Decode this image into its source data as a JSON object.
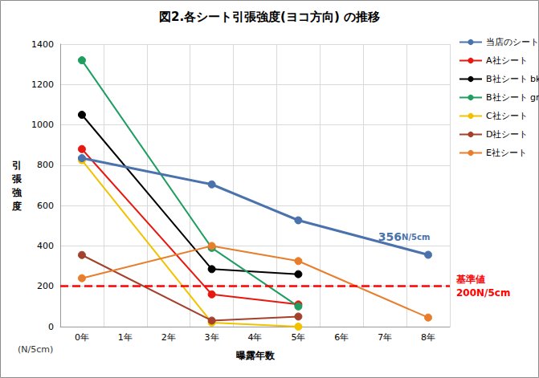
{
  "chart_data": {
    "type": "line",
    "title": "図2.各シート引張強度(ヨコ方向) の推移",
    "x_label": "曝露年数",
    "y_label": "引張強度",
    "y_unit_label": "(N/5cm)",
    "categories": [
      "0年",
      "1年",
      "2年",
      "3年",
      "4年",
      "5年",
      "6年",
      "7年",
      "8年"
    ],
    "ylim": [
      0,
      1400
    ],
    "yticks": [
      0,
      200,
      400,
      600,
      800,
      1000,
      1200,
      1400
    ],
    "grid": true,
    "legend": "right",
    "marker": "circle",
    "series": [
      {
        "name": "当店のシート",
        "color": "#4a72ad",
        "values": [
          835,
          null,
          null,
          705,
          null,
          527,
          null,
          null,
          356
        ]
      },
      {
        "name": "A社シート",
        "color": "#e8170f",
        "values": [
          880,
          null,
          null,
          160,
          null,
          110,
          null,
          null,
          null
        ]
      },
      {
        "name": "B社シート bk",
        "color": "#000000",
        "values": [
          1050,
          null,
          null,
          285,
          null,
          260,
          null,
          null,
          null
        ]
      },
      {
        "name": "B社シート gr",
        "color": "#1f9e5f",
        "values": [
          1320,
          null,
          null,
          390,
          null,
          100,
          null,
          null,
          null
        ]
      },
      {
        "name": "C社シート",
        "color": "#f2c200",
        "values": [
          825,
          null,
          null,
          20,
          null,
          0,
          null,
          null,
          null
        ]
      },
      {
        "name": "D社シート",
        "color": "#a3412c",
        "values": [
          355,
          null,
          null,
          30,
          null,
          50,
          null,
          null,
          null
        ]
      },
      {
        "name": "E社シート",
        "color": "#e87d2b",
        "values": [
          240,
          null,
          null,
          400,
          null,
          325,
          null,
          null,
          45
        ]
      }
    ],
    "reference_line": {
      "y": 200,
      "color": "#ff0000",
      "line_style": "dashed",
      "labels": [
        "基準値",
        "200N/5cm"
      ]
    },
    "annotations": [
      {
        "text": "356N/5cm",
        "x": "8年",
        "y": 356,
        "color": "#4a72ad"
      }
    ]
  }
}
